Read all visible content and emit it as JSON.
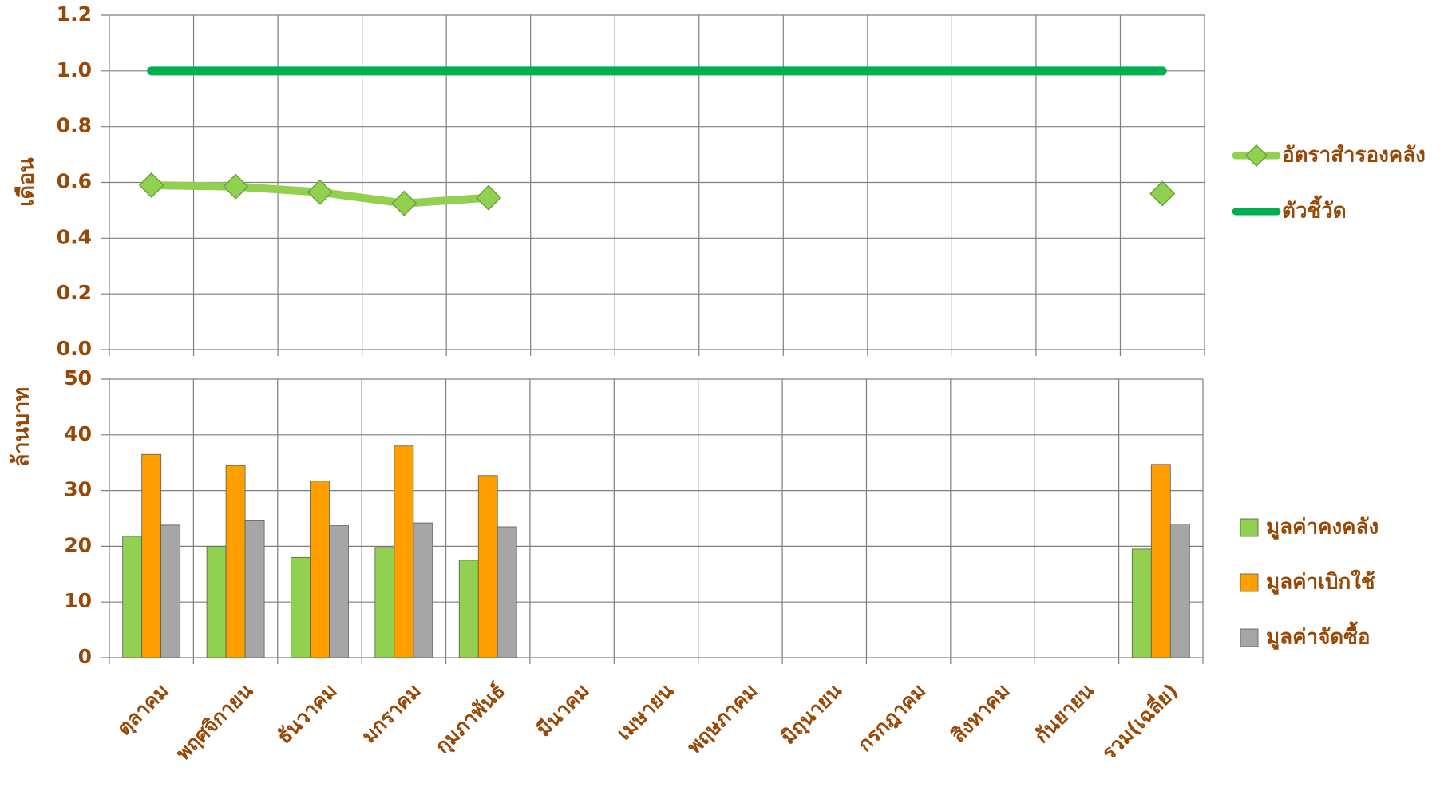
{
  "chart_data": [
    {
      "type": "line",
      "ylabel": "เดือน",
      "ylim": [
        0,
        1.2
      ],
      "yticks": [
        {
          "value": 0,
          "label": "0.0"
        },
        {
          "value": 0.2,
          "label": "0.2"
        },
        {
          "value": 0.4,
          "label": "0.4"
        },
        {
          "value": 0.6,
          "label": "0.6"
        },
        {
          "value": 0.8,
          "label": "0.8"
        },
        {
          "value": 1,
          "label": "1.0"
        },
        {
          "value": 1.2,
          "label": "1.2"
        }
      ],
      "grid": true,
      "series": [
        {
          "name": "อัตราสำรองคลัง",
          "color": "#92d050",
          "marker": "diamond",
          "values": [
            0.59,
            0.585,
            0.565,
            0.525,
            0.545,
            null,
            null,
            null,
            null,
            null,
            null,
            null,
            0.56
          ]
        },
        {
          "name": "ตัวชี้วัด",
          "color": "#00b050",
          "values": [
            1,
            1,
            1,
            1,
            1,
            1,
            1,
            1,
            1,
            1,
            1,
            1,
            1
          ]
        }
      ]
    },
    {
      "type": "bar",
      "ylabel": "ล้านบาท",
      "categories": [
        "ตุลาคม",
        "พฤศจิกายน",
        "ธันวาคม",
        "มกราคม",
        "กุมภาพันธ์",
        "มีนาคม",
        "เมษายน",
        "พฤษภาคม",
        "มิถุนายน",
        "กรกฎาคม",
        "สิงหาคม",
        "กันยายน",
        "รวม(เฉลี่ย)"
      ],
      "ylim": [
        0,
        50
      ],
      "yticks": [
        0,
        10,
        20,
        30,
        40,
        50
      ],
      "grid": true,
      "series": [
        {
          "name": "มูลค่าคงคลัง",
          "color": "#92d050",
          "values": [
            21.8,
            20,
            18,
            19.8,
            17.5,
            null,
            null,
            null,
            null,
            null,
            null,
            null,
            19.5
          ]
        },
        {
          "name": "มูลค่าเบิกใช้",
          "color": "#ffa000",
          "values": [
            36.5,
            34.5,
            31.7,
            38,
            32.7,
            null,
            null,
            null,
            null,
            null,
            null,
            null,
            34.7
          ]
        },
        {
          "name": "มูลค่าจัดซื้อ",
          "color": "#a6a6a6",
          "values": [
            23.8,
            24.6,
            23.7,
            24.2,
            23.5,
            null,
            null,
            null,
            null,
            null,
            null,
            null,
            24
          ]
        }
      ]
    }
  ]
}
